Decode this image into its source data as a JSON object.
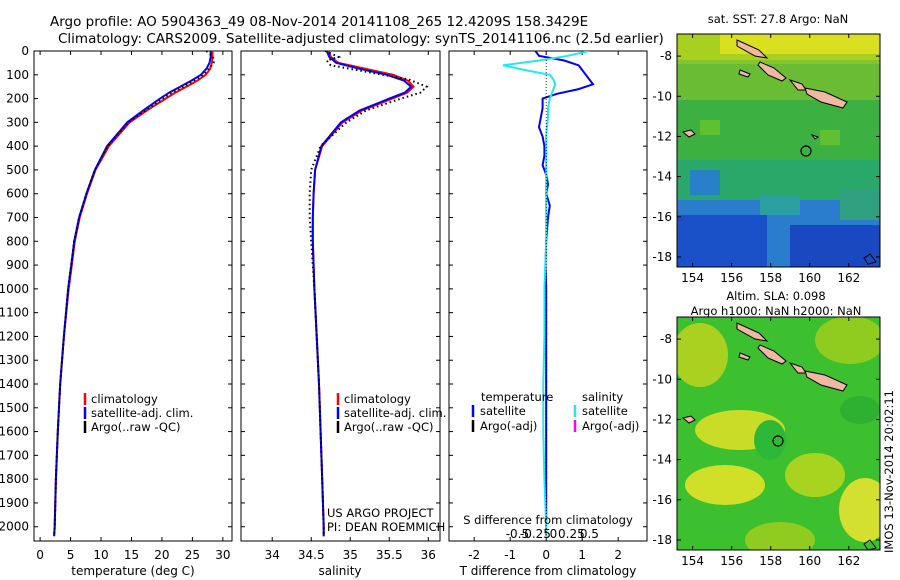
{
  "titles": {
    "line1": "Argo profile: AO 5904363_49 08-Nov-2014 20141108_265 12.4209S 158.3429E",
    "line2": "Climatology: CARS2009. Satellite-adjusted climatology: synTS_20141106.nc (2.5d earlier)"
  },
  "colors": {
    "clim": "#ff0000",
    "sat": "#0000ff",
    "argo": "#000000",
    "t_sat": "#0000ff",
    "s_sat": "#22e8f0",
    "s_argo": "#ff00ff"
  },
  "depth_ticks": [
    0,
    100,
    200,
    300,
    400,
    500,
    600,
    700,
    800,
    900,
    1000,
    1100,
    1200,
    1300,
    1400,
    1500,
    1600,
    1700,
    1800,
    1900,
    2000
  ],
  "chart_data": [
    {
      "type": "line",
      "name": "temperature",
      "xlabel": "temperature (deg C)",
      "xlim": [
        -1,
        31.5
      ],
      "xticks": [
        0,
        5,
        10,
        15,
        20,
        25,
        30
      ],
      "ylim": [
        0,
        2060
      ],
      "ylabel": "depth",
      "legend": [
        "climatology",
        "satellite-adj. clim.",
        "Argo(..raw -QC)"
      ],
      "series": [
        {
          "name": "climatology",
          "key": "clim",
          "depth": [
            0,
            10,
            25,
            50,
            75,
            100,
            125,
            150,
            175,
            200,
            250,
            300,
            400,
            500,
            600,
            700,
            800,
            900,
            1000,
            1200,
            1400,
            1600,
            1800,
            2000,
            2040
          ],
          "values": [
            28.3,
            28.3,
            28.3,
            28.2,
            27.9,
            27.2,
            25.8,
            24.0,
            22.2,
            20.6,
            17.5,
            14.7,
            11.3,
            9.1,
            7.7,
            6.5,
            5.7,
            5.2,
            4.7,
            3.9,
            3.3,
            2.9,
            2.6,
            2.4,
            2.3
          ]
        },
        {
          "name": "satellite-adj. clim.",
          "key": "sat",
          "depth": [
            0,
            10,
            25,
            50,
            75,
            100,
            125,
            150,
            175,
            200,
            250,
            300,
            400,
            500,
            600,
            700,
            800,
            900,
            1000,
            1200,
            1400,
            1600,
            1800,
            2000,
            2040
          ],
          "values": [
            28.0,
            28.0,
            28.0,
            27.8,
            27.3,
            26.4,
            24.8,
            23.0,
            21.2,
            19.7,
            16.9,
            14.3,
            11.0,
            9.0,
            7.6,
            6.4,
            5.6,
            5.1,
            4.6,
            3.9,
            3.3,
            2.9,
            2.6,
            2.4,
            2.3
          ]
        },
        {
          "name": "Argo(..raw -QC)",
          "key": "argo",
          "depth": [
            0,
            10,
            25,
            50,
            75,
            100,
            125,
            150,
            175,
            200,
            250,
            300,
            400,
            500,
            600,
            700,
            800,
            900,
            1000,
            1200,
            1400,
            1600,
            1800,
            2000,
            2040
          ],
          "values": [
            27.3,
            27.8,
            28.4,
            28.5,
            27.7,
            26.8,
            25.3,
            23.5,
            21.7,
            20.2,
            17.3,
            14.5,
            11.1,
            9.0,
            7.6,
            6.4,
            5.6,
            5.1,
            4.6,
            3.9,
            3.3,
            2.9,
            2.6,
            2.4,
            2.3
          ]
        }
      ]
    },
    {
      "type": "line",
      "name": "salinity",
      "xlabel": "salinity",
      "xlim": [
        33.6,
        36.15
      ],
      "xticks": [
        34,
        34.5,
        35,
        35.5,
        36
      ],
      "ylim": [
        0,
        2060
      ],
      "legend": [
        "climatology",
        "satellite-adj. clim.",
        "Argo(..raw -QC)"
      ],
      "series": [
        {
          "name": "climatology",
          "key": "clim",
          "depth": [
            0,
            25,
            50,
            75,
            100,
            125,
            150,
            175,
            200,
            250,
            300,
            400,
            500,
            600,
            700,
            800,
            900,
            1000,
            1200,
            1400,
            1600,
            1800,
            2000,
            2040
          ],
          "values": [
            34.72,
            34.75,
            34.85,
            35.2,
            35.55,
            35.74,
            35.81,
            35.73,
            35.54,
            35.15,
            34.9,
            34.64,
            34.55,
            34.53,
            34.52,
            34.52,
            34.53,
            34.54,
            34.57,
            34.6,
            34.62,
            34.64,
            34.66,
            34.66
          ]
        },
        {
          "name": "satellite-adj. clim.",
          "key": "sat",
          "depth": [
            0,
            25,
            50,
            75,
            100,
            125,
            150,
            175,
            200,
            250,
            300,
            400,
            500,
            600,
            700,
            800,
            900,
            1000,
            1200,
            1400,
            1600,
            1800,
            2000,
            2040
          ],
          "values": [
            34.7,
            34.73,
            34.82,
            35.12,
            35.47,
            35.69,
            35.78,
            35.7,
            35.5,
            35.12,
            34.88,
            34.63,
            34.55,
            34.53,
            34.52,
            34.52,
            34.53,
            34.54,
            34.57,
            34.6,
            34.62,
            34.64,
            34.66,
            34.66
          ]
        },
        {
          "name": "Argo(..raw -QC)",
          "key": "argo",
          "depth": [
            0,
            25,
            40,
            60,
            90,
            120,
            150,
            175,
            200,
            250,
            300,
            400,
            500,
            600,
            700,
            800,
            900,
            1000,
            1200,
            1400,
            1600,
            1800,
            2000,
            2040
          ],
          "values": [
            34.68,
            34.85,
            34.7,
            34.75,
            35.25,
            35.75,
            35.98,
            35.9,
            35.65,
            35.2,
            34.95,
            34.62,
            34.5,
            34.48,
            34.48,
            34.5,
            34.52,
            34.54,
            34.57,
            34.6,
            34.62,
            34.64,
            34.66,
            34.66
          ]
        }
      ],
      "annotation": [
        "US ARGO PROJECT",
        "PI: DEAN ROEMMICH"
      ]
    },
    {
      "type": "line",
      "name": "difference",
      "xlabel": "T difference from climatology",
      "x2label": "S difference from climatology",
      "xlim": [
        -2.7,
        2.8
      ],
      "xticks": [
        -2,
        -1,
        0,
        1,
        2
      ],
      "x2ticks_labels": [
        "-0.5",
        "-0.25",
        "0",
        "0.25",
        "0.5"
      ],
      "ylim": [
        0,
        2060
      ],
      "legend_headers": [
        "temperature",
        "salinity"
      ],
      "legend": [
        "satellite",
        "Argo(-adj)",
        "satellite",
        "Argo(-adj)"
      ],
      "series": [
        {
          "name": "temperature satellite",
          "key": "t_sat",
          "depth": [
            0,
            20,
            40,
            60,
            80,
            100,
            120,
            140,
            160,
            180,
            200,
            240,
            280,
            320,
            360,
            400,
            440,
            480,
            520,
            560,
            600,
            650,
            700,
            800,
            900,
            1000,
            1200,
            1400,
            1600,
            1800,
            2000,
            2040
          ],
          "values": [
            -0.3,
            -0.2,
            0.5,
            0.9,
            1.0,
            1.1,
            1.2,
            1.3,
            0.9,
            0.3,
            -0.1,
            -0.1,
            -0.15,
            -0.2,
            -0.1,
            -0.05,
            -0.05,
            -0.1,
            0.0,
            0.05,
            0.0,
            0.1,
            0.05,
            0.0,
            -0.02,
            0.0,
            0.0,
            0.0,
            0.0,
            0.0,
            0.0,
            0.0
          ]
        },
        {
          "name": "salinity satellite",
          "key": "s_sat",
          "depth": [
            0,
            20,
            40,
            60,
            80,
            100,
            120,
            140,
            160,
            180,
            200,
            240,
            280,
            320,
            360,
            400,
            500,
            600,
            700,
            800,
            1000,
            1200,
            1400,
            1600,
            1800,
            2000,
            2040
          ],
          "values": [
            1.2,
            0.6,
            -0.2,
            -1.2,
            -0.6,
            0.1,
            0.2,
            0.25,
            0.2,
            0.15,
            0.1,
            0.05,
            0.05,
            0.02,
            0.0,
            0.0,
            0.0,
            0.0,
            0.0,
            0.0,
            -0.05,
            -0.05,
            -0.08,
            -0.08,
            -0.05,
            0.0,
            0.0
          ]
        }
      ]
    }
  ],
  "maps": [
    {
      "title": "sat. SST: 27.8 Argo: NaN",
      "lon_ticks": [
        "154",
        "156",
        "158",
        "160",
        "162"
      ],
      "lat_ticks": [
        "-8",
        "-10",
        "-12",
        "-14",
        "-16",
        "-18"
      ]
    },
    {
      "title1": "Altim. SLA: 0.098",
      "title2": "Argo h1000: NaN h2000: NaN",
      "lon_ticks": [
        "154",
        "156",
        "158",
        "160",
        "162"
      ],
      "lat_ticks": [
        "-8",
        "-10",
        "-12",
        "-14",
        "-16",
        "-18"
      ]
    }
  ],
  "footer": "IMOS 13-Nov-2014 20:02:11"
}
